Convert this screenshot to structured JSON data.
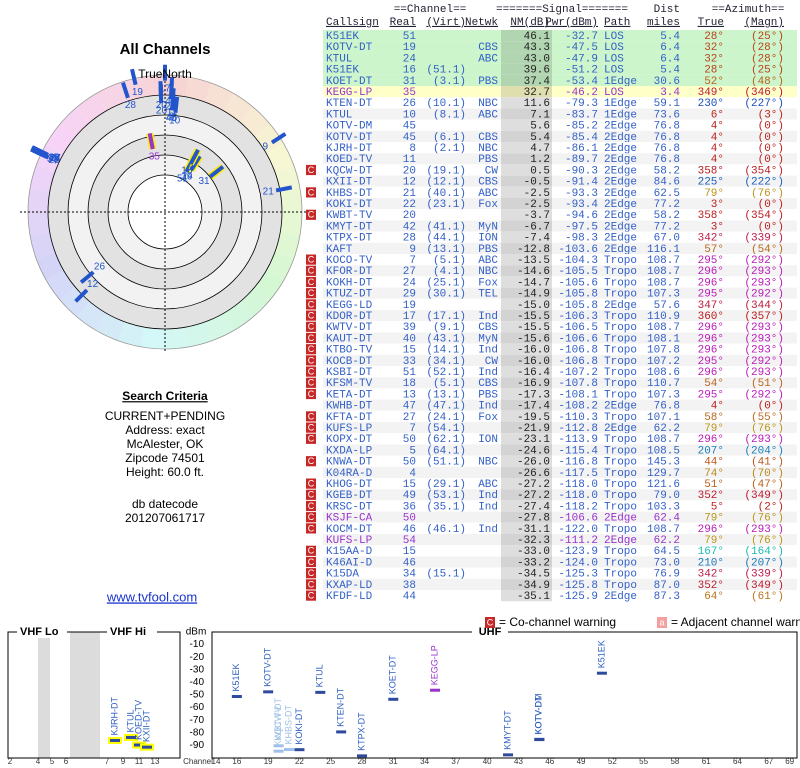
{
  "left": {
    "title": "All Channels",
    "north": "TrueNorth",
    "criteria_title": "Search Criteria",
    "criteria": [
      "CURRENT+PENDING",
      "Address: exact",
      "McAlester, OK",
      "Zipcode 74501",
      "Height: 60.0 ft."
    ],
    "datecode_label": "db datecode",
    "datecode": "201207061717",
    "link": "www.tvfool.com"
  },
  "table": {
    "group_headers": [
      "==Channel==",
      "=======Signal=======",
      "Dist",
      "==Azimuth=="
    ],
    "headers": [
      "Callsign",
      "Real",
      "(Virt)",
      "Netwk",
      "NM(dB)",
      "Pwr(dBm)",
      "Path",
      "miles",
      "True",
      "(Magn)"
    ],
    "rows": [
      {
        "cells": [
          null,
          "K51EK",
          "51",
          null,
          null,
          "46.1",
          "-32.7",
          "LOS",
          "5.4",
          "28°",
          "(25°)"
        ],
        "bg": "#ccf5cc"
      },
      {
        "cells": [
          null,
          "KOTV-DT",
          "19",
          null,
          "CBS",
          "43.3",
          "-47.5",
          "LOS",
          "6.4",
          "32°",
          "(28°)"
        ],
        "bg": "#ccf5cc"
      },
      {
        "cells": [
          null,
          "KTUL",
          "24",
          null,
          "ABC",
          "43.0",
          "-47.9",
          "LOS",
          "6.4",
          "32°",
          "(28°)"
        ],
        "bg": "#ccf5cc"
      },
      {
        "cells": [
          null,
          "K51EK",
          "16",
          "(51.1)",
          null,
          "39.6",
          "-51.2",
          "LOS",
          "5.4",
          "28°",
          "(25°)"
        ],
        "bg": "#ccf5cc"
      },
      {
        "cells": [
          null,
          "KOET-DT",
          "31",
          "(3.1)",
          "PBS",
          "37.4",
          "-53.4",
          "1Edge",
          "30.6",
          "52°",
          "(48°)"
        ],
        "bg": "#ccf5cc"
      },
      {
        "cells": [
          null,
          "KEGG-LP",
          "35",
          null,
          null,
          "32.7",
          "-46.2",
          "LOS",
          "3.4",
          "349°",
          "(346°)"
        ],
        "bg": "#ffffc8",
        "color": "#9933cc"
      },
      {
        "cells": [
          null,
          "KTEN-DT",
          "26",
          "(10.1)",
          "NBC",
          "11.6",
          "-79.3",
          "1Edge",
          "59.1",
          "230°",
          "(227°)"
        ]
      },
      {
        "cells": [
          null,
          "KTUL",
          "10",
          "(8.1)",
          "ABC",
          "7.1",
          "-83.7",
          "1Edge",
          "73.6",
          "6°",
          "(3°)"
        ]
      },
      {
        "cells": [
          null,
          "KOTV-DM",
          "45",
          null,
          null,
          "5.6",
          "-85.2",
          "2Edge",
          "76.8",
          "4°",
          "(0°)"
        ]
      },
      {
        "cells": [
          null,
          "KOTV-DT",
          "45",
          "(6.1)",
          "CBS",
          "5.4",
          "-85.4",
          "2Edge",
          "76.8",
          "4°",
          "(0°)"
        ]
      },
      {
        "cells": [
          null,
          "KJRH-DT",
          "8",
          "(2.1)",
          "NBC",
          "4.7",
          "-86.1",
          "2Edge",
          "76.8",
          "4°",
          "(0°)"
        ]
      },
      {
        "cells": [
          null,
          "KOED-TV",
          "11",
          null,
          "PBS",
          "1.2",
          "-89.7",
          "2Edge",
          "76.8",
          "4°",
          "(0°)"
        ]
      },
      {
        "cells": [
          "C",
          "KQCW-DT",
          "20",
          "(19.1)",
          "CW",
          "0.5",
          "-90.3",
          "2Edge",
          "58.2",
          "358°",
          "(354°)"
        ]
      },
      {
        "cells": [
          null,
          "KXII-DT",
          "12",
          "(12.1)",
          "CBS",
          "-0.5",
          "-91.4",
          "2Edge",
          "84.6",
          "225°",
          "(222°)"
        ]
      },
      {
        "cells": [
          "C",
          "KHBS-DT",
          "21",
          "(40.1)",
          "ABC",
          "-2.5",
          "-93.3",
          "2Edge",
          "62.5",
          "79°",
          "(76°)"
        ]
      },
      {
        "cells": [
          null,
          "KOKI-DT",
          "22",
          "(23.1)",
          "Fox",
          "-2.5",
          "-93.4",
          "2Edge",
          "77.2",
          "3°",
          "(0°)"
        ]
      },
      {
        "cells": [
          "C",
          "KWBT-TV",
          "20",
          null,
          null,
          "-3.7",
          "-94.6",
          "2Edge",
          "58.2",
          "358°",
          "(354°)"
        ]
      },
      {
        "cells": [
          null,
          "KMYT-DT",
          "42",
          "(41.1)",
          "MyN",
          "-6.7",
          "-97.5",
          "2Edge",
          "77.2",
          "3°",
          "(0°)"
        ]
      },
      {
        "cells": [
          null,
          "KTPX-DT",
          "28",
          "(44.1)",
          "ION",
          "-7.4",
          "-98.3",
          "2Edge",
          "67.0",
          "342°",
          "(339°)"
        ]
      },
      {
        "cells": [
          null,
          "KAFT",
          "9",
          "(13.1)",
          "PBS",
          "-12.8",
          "-103.6",
          "2Edge",
          "116.1",
          "57°",
          "(54°)"
        ]
      },
      {
        "cells": [
          "C",
          "KOCO-TV",
          "7",
          "(5.1)",
          "ABC",
          "-13.5",
          "-104.3",
          "Tropo",
          "108.7",
          "295°",
          "(292°)"
        ]
      },
      {
        "cells": [
          "C",
          "KFOR-DT",
          "27",
          "(4.1)",
          "NBC",
          "-14.6",
          "-105.5",
          "Tropo",
          "108.7",
          "296°",
          "(293°)"
        ]
      },
      {
        "cells": [
          "C",
          "KOKH-DT",
          "24",
          "(25.1)",
          "Fox",
          "-14.7",
          "-105.6",
          "Tropo",
          "108.7",
          "296°",
          "(293°)"
        ]
      },
      {
        "cells": [
          "C",
          "KTUZ-DT",
          "29",
          "(30.1)",
          "TEL",
          "-14.9",
          "-105.8",
          "Tropo",
          "107.3",
          "295°",
          "(292°)"
        ]
      },
      {
        "cells": [
          "C",
          "KEGG-LD",
          "19",
          null,
          null,
          "-15.0",
          "-105.8",
          "2Edge",
          "57.6",
          "347°",
          "(344°)"
        ]
      },
      {
        "cells": [
          "C",
          "KDOR-DT",
          "17",
          "(17.1)",
          "Ind",
          "-15.5",
          "-106.3",
          "Tropo",
          "110.9",
          "360°",
          "(357°)"
        ]
      },
      {
        "cells": [
          "C",
          "KWTV-DT",
          "39",
          "(9.1)",
          "CBS",
          "-15.5",
          "-106.5",
          "Tropo",
          "108.7",
          "296°",
          "(293°)"
        ]
      },
      {
        "cells": [
          "C",
          "KAUT-DT",
          "40",
          "(43.1)",
          "MyN",
          "-15.6",
          "-106.6",
          "Tropo",
          "108.1",
          "296°",
          "(293°)"
        ]
      },
      {
        "cells": [
          "C",
          "KTBO-TV",
          "15",
          "(14.1)",
          "Ind",
          "-16.0",
          "-106.8",
          "Tropo",
          "107.8",
          "296°",
          "(293°)"
        ]
      },
      {
        "cells": [
          "C",
          "KOCB-DT",
          "33",
          "(34.1)",
          "CW",
          "-16.0",
          "-106.8",
          "Tropo",
          "107.2",
          "295°",
          "(292°)"
        ]
      },
      {
        "cells": [
          "C",
          "KSBI-DT",
          "51",
          "(52.1)",
          "Ind",
          "-16.4",
          "-107.2",
          "Tropo",
          "108.6",
          "296°",
          "(293°)"
        ]
      },
      {
        "cells": [
          "C",
          "KFSM-TV",
          "18",
          "(5.1)",
          "CBS",
          "-16.9",
          "-107.8",
          "Tropo",
          "110.7",
          "54°",
          "(51°)"
        ]
      },
      {
        "cells": [
          "C",
          "KETA-DT",
          "13",
          "(13.1)",
          "PBS",
          "-17.3",
          "-108.1",
          "Tropo",
          "107.3",
          "295°",
          "(292°)"
        ]
      },
      {
        "cells": [
          null,
          "KWHB-DT",
          "47",
          "(47.1)",
          "Ind",
          "-17.4",
          "-108.2",
          "2Edge",
          "76.8",
          "4°",
          "(0°)"
        ]
      },
      {
        "cells": [
          "C",
          "KFTA-DT",
          "27",
          "(24.1)",
          "Fox",
          "-19.5",
          "-110.3",
          "Tropo",
          "107.1",
          "58°",
          "(55°)"
        ]
      },
      {
        "cells": [
          "C",
          "KUFS-LP",
          "7",
          "(54.1)",
          null,
          "-21.9",
          "-112.8",
          "2Edge",
          "62.2",
          "79°",
          "(76°)"
        ]
      },
      {
        "cells": [
          "C",
          "KOPX-DT",
          "50",
          "(62.1)",
          "ION",
          "-23.1",
          "-113.9",
          "Tropo",
          "108.7",
          "296°",
          "(293°)"
        ]
      },
      {
        "cells": [
          null,
          "KXDA-LP",
          "5",
          "(64.1)",
          null,
          "-24.6",
          "-115.4",
          "Tropo",
          "108.5",
          "207°",
          "(204°)"
        ]
      },
      {
        "cells": [
          "C",
          "KNWA-DT",
          "50",
          "(51.1)",
          "NBC",
          "-26.0",
          "-116.8",
          "Tropo",
          "145.3",
          "44°",
          "(41°)"
        ]
      },
      {
        "cells": [
          null,
          "K04RA-D",
          "4",
          null,
          null,
          "-26.6",
          "-117.5",
          "Tropo",
          "129.7",
          "74°",
          "(70°)"
        ]
      },
      {
        "cells": [
          "C",
          "KHOG-DT",
          "15",
          "(29.1)",
          "ABC",
          "-27.2",
          "-118.0",
          "Tropo",
          "121.6",
          "51°",
          "(47°)"
        ]
      },
      {
        "cells": [
          "C",
          "KGEB-DT",
          "49",
          "(53.1)",
          "Ind",
          "-27.2",
          "-118.0",
          "Tropo",
          "79.0",
          "352°",
          "(349°)"
        ]
      },
      {
        "cells": [
          "C",
          "KRSC-DT",
          "36",
          "(35.1)",
          "Ind",
          "-27.4",
          "-118.2",
          "Tropo",
          "103.3",
          "5°",
          "(2°)"
        ]
      },
      {
        "cells": [
          "C",
          "KSJF-CA",
          "50",
          null,
          null,
          "-27.8",
          "-106.6",
          "2Edge",
          "62.4",
          "79°",
          "(76°)"
        ],
        "color": "#9933cc"
      },
      {
        "cells": [
          "C",
          "KOCM-DT",
          "46",
          "(46.1)",
          "Ind",
          "-31.1",
          "-122.0",
          "Tropo",
          "108.7",
          "296°",
          "(293°)"
        ]
      },
      {
        "cells": [
          null,
          "KUFS-LP",
          "54",
          null,
          null,
          "-32.3",
          "-111.2",
          "2Edge",
          "62.2",
          "79°",
          "(76°)"
        ],
        "color": "#9933cc"
      },
      {
        "cells": [
          "C",
          "K15AA-D",
          "15",
          null,
          null,
          "-33.0",
          "-123.9",
          "Tropo",
          "64.5",
          "167°",
          "(164°)"
        ]
      },
      {
        "cells": [
          "C",
          "K46AI-D",
          "46",
          null,
          null,
          "-33.2",
          "-124.0",
          "Tropo",
          "73.0",
          "210°",
          "(207°)"
        ]
      },
      {
        "cells": [
          "C",
          "K15DA",
          "34",
          "(15.1)",
          null,
          "-34.5",
          "-125.3",
          "Tropo",
          "76.9",
          "342°",
          "(339°)"
        ]
      },
      {
        "cells": [
          "C",
          "KXAP-LD",
          "38",
          null,
          null,
          "-34.9",
          "-125.8",
          "Tropo",
          "87.0",
          "352°",
          "(349°)"
        ]
      },
      {
        "cells": [
          "C",
          "KFDF-LD",
          "44",
          null,
          null,
          "-35.1",
          "-125.9",
          "2Edge",
          "87.3",
          "64°",
          "(61°)"
        ]
      }
    ]
  },
  "spectrum": {
    "bands": [
      "VHF Lo",
      "VHF Hi",
      "UHF"
    ],
    "unit": "dBm",
    "ylim": [
      -100,
      0
    ],
    "yticks": [
      -10,
      -20,
      -30,
      -40,
      -50,
      -60,
      -70,
      -80,
      -90
    ],
    "axis_label": "Channel",
    "vhf_ticks": [
      2,
      4,
      5,
      6,
      7,
      9,
      11,
      13
    ],
    "uhf_ticks": [
      14,
      16,
      19,
      22,
      25,
      28,
      31,
      34,
      37,
      40,
      43,
      46,
      49,
      52,
      55,
      58,
      61,
      64,
      67,
      69
    ],
    "legend": [
      {
        "icon": "C",
        "text": "= Co-channel warning"
      },
      {
        "icon": "a",
        "text": "= Adjacent channel warning"
      }
    ]
  }
}
